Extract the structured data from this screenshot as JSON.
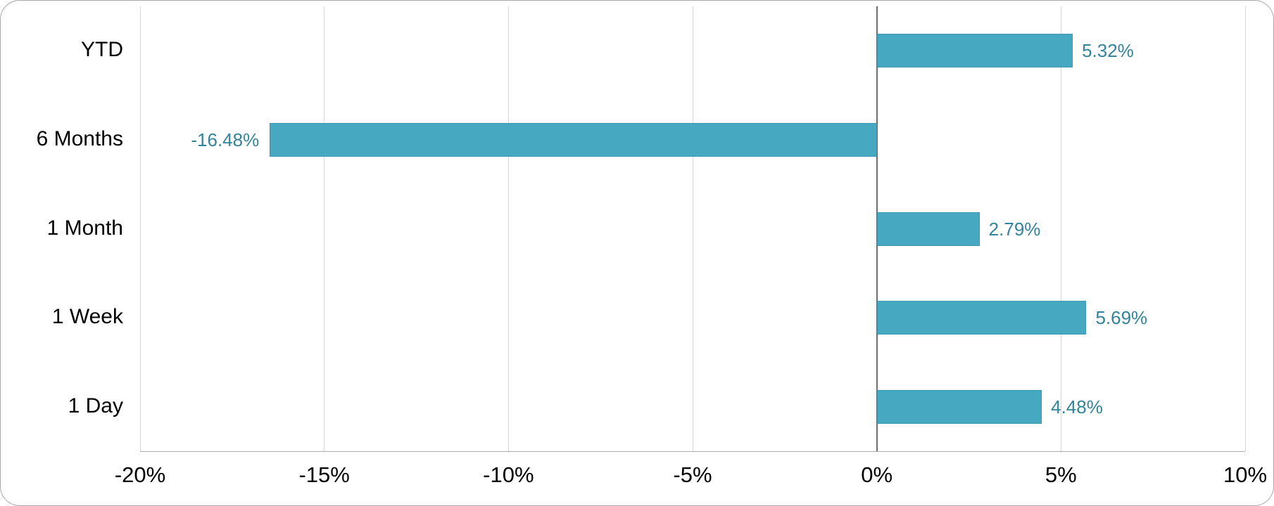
{
  "window": {
    "kind": "chart-card",
    "background_color": "#FFFFFF",
    "border_color": "#A8A8A8"
  },
  "chart_data": {
    "type": "bar",
    "orientation": "horizontal",
    "title": "",
    "xlabel": "",
    "ylabel": "",
    "categories": [
      "YTD",
      "6 Months",
      "1 Month",
      "1 Week",
      "1 Day"
    ],
    "values": [
      5.32,
      -16.48,
      2.79,
      5.69,
      4.48
    ],
    "value_labels": [
      "5.32%",
      "-16.48%",
      "2.79%",
      "5.69%",
      "4.48%"
    ],
    "xlim": [
      -20,
      10
    ],
    "xticks": {
      "values": [
        -20,
        -15,
        -10,
        -5,
        0,
        5,
        10
      ],
      "labels": [
        "-20%",
        "-15%",
        "-10%",
        "-5%",
        "0%",
        "5%",
        "10%"
      ]
    },
    "grid": "vertical-on",
    "zero_line": true,
    "legend": "none",
    "colors": {
      "bar": "#47A8C1",
      "bar_border": "#3E96AE",
      "value_label": "#31849C",
      "gridline": "#D6D6D6",
      "zero_line": "#6E6E6E",
      "axis_line": "#ABABAB",
      "axis_text": "#000000",
      "category_text": "#000000"
    }
  }
}
